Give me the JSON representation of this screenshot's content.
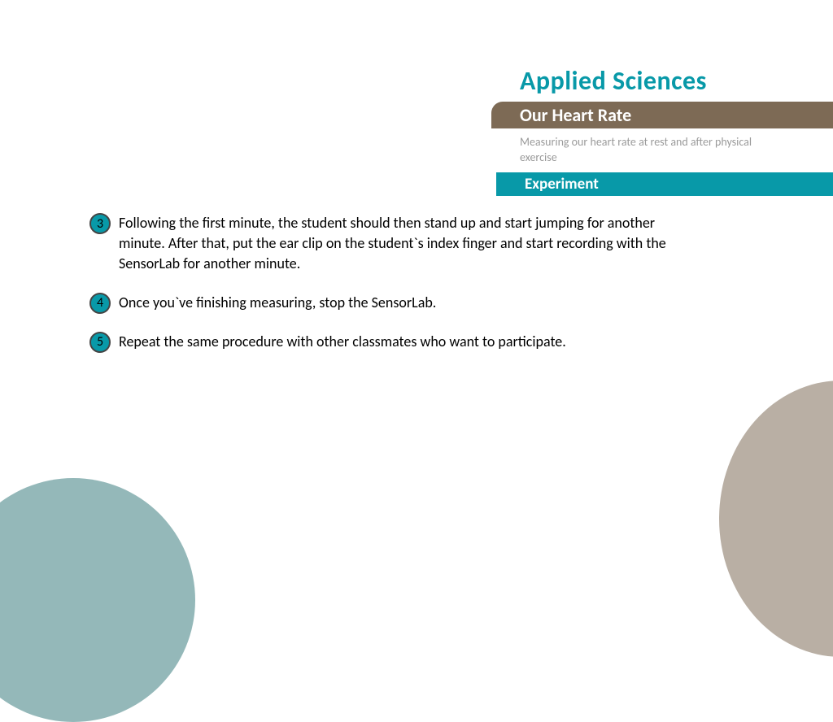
{
  "header": {
    "brand": "Applied Sciences",
    "title": "Our Heart Rate",
    "subtitle": "Measuring our heart rate at rest and after physical exercise",
    "section": "Experiment"
  },
  "steps": [
    {
      "n": "3",
      "text": "Following the first minute, the student should then stand up and start jumping for another minute. After that, put the ear clip on the student`s index finger and start recording with the SensorLab for another minute."
    },
    {
      "n": "4",
      "text": "Once you`ve finishing measuring, stop the SensorLab."
    },
    {
      "n": "5",
      "text": "Repeat the same procedure with other classmates who want to participate."
    }
  ],
  "colors": {
    "brand": "#0899a8",
    "title_bar": "#7d6a55",
    "section_bar": "#0899a8",
    "subtitle_text": "#9a9a9a",
    "step_text": "#000000",
    "num_fill": "#0899a8",
    "num_border": "#444444",
    "deco_bl": "#94b8b9",
    "deco_br": "#b9afa4",
    "background": "#ffffff"
  },
  "typography": {
    "brand_size": 32,
    "title_size": 22,
    "subtitle_size": 14,
    "section_size": 19,
    "step_size": 18
  }
}
